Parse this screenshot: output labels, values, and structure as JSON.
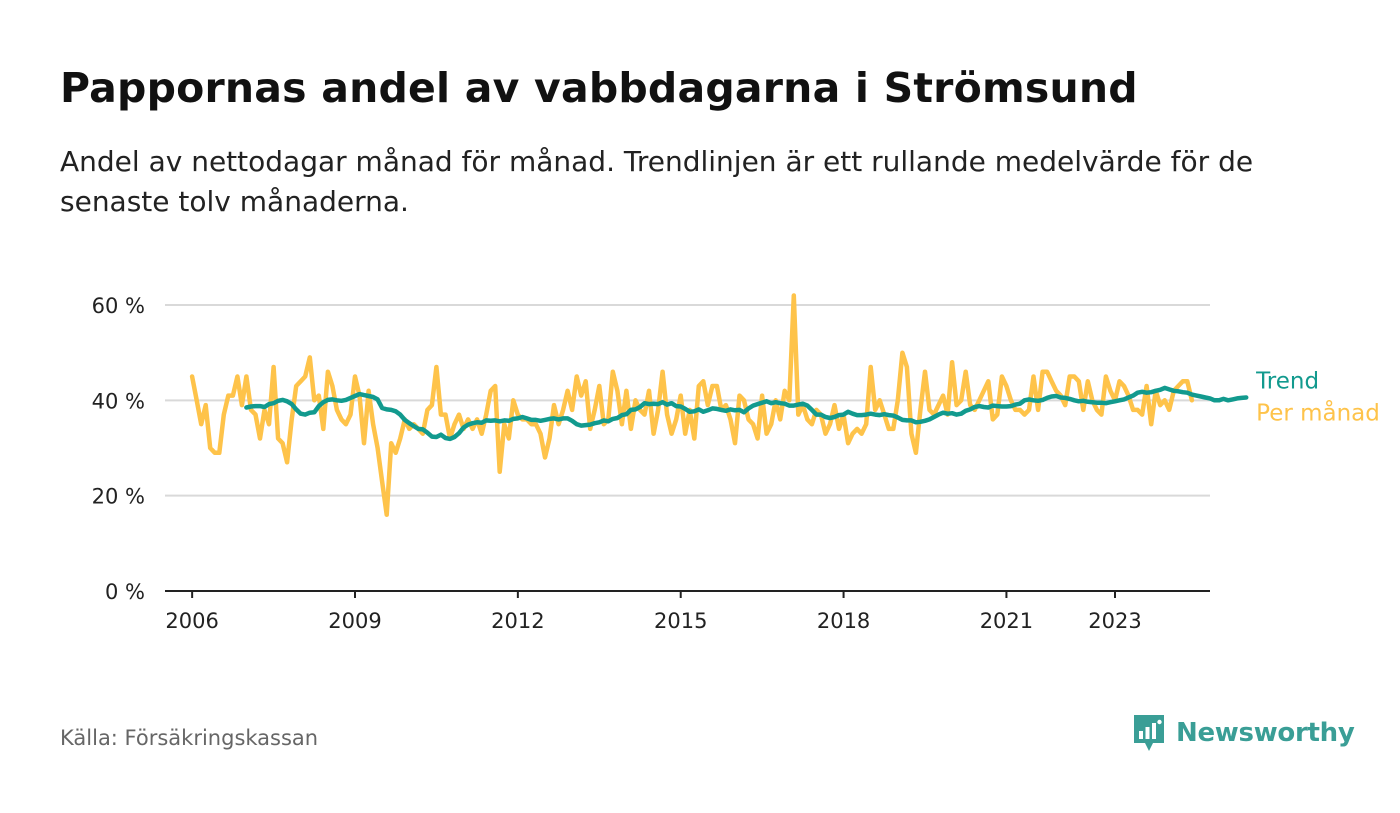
{
  "header": {
    "title": "Pappornas andel av vabbdagarna i Strömsund",
    "subtitle": "Andel av nettodagar månad för månad. Trendlinjen är ett rullande medelvärde för de senaste tolv månaderna."
  },
  "footer": {
    "source": "Källa: Försäkringskassan",
    "brand": "Newsworthy",
    "brand_icon": "newsworthy-logo-icon"
  },
  "colors": {
    "monthly": "#fec34a",
    "trend": "#129a8e",
    "grid": "#d9d9d9",
    "axis": "#222222",
    "brand": "#3a9e96"
  },
  "chart_data": {
    "type": "line",
    "title": "Pappornas andel av vabbdagarna i Strömsund",
    "xlabel": "",
    "ylabel": "",
    "x_range": [
      2005.5,
      2024.75
    ],
    "ylim": [
      0,
      60
    ],
    "y_ticks": [
      0,
      20,
      40,
      60
    ],
    "y_tick_labels": [
      "0 %",
      "20 %",
      "40 %",
      "60 %"
    ],
    "x_ticks": [
      2006,
      2009,
      2012,
      2015,
      2018,
      2021,
      2023
    ],
    "x_tick_labels": [
      "2006",
      "2009",
      "2012",
      "2015",
      "2018",
      "2021",
      "2023"
    ],
    "grid": true,
    "series": [
      {
        "name": "Per månad",
        "start": 2006.0,
        "step": 0.08333,
        "values": [
          45,
          40,
          35,
          39,
          30,
          29,
          29,
          37,
          41,
          41,
          45,
          39,
          45,
          38,
          37,
          32,
          38,
          35,
          47,
          32,
          31,
          27,
          36,
          43,
          44,
          45,
          49,
          40,
          41,
          34,
          46,
          43,
          38,
          36,
          35,
          37,
          45,
          41,
          31,
          42,
          35,
          30,
          23,
          16,
          31,
          29,
          32,
          36,
          34,
          35,
          34,
          33,
          38,
          39,
          47,
          37,
          37,
          32,
          35,
          37,
          34,
          36,
          34,
          36,
          33,
          37,
          42,
          43,
          25,
          35,
          32,
          40,
          37,
          36,
          36,
          35,
          35,
          33,
          28,
          32,
          39,
          35,
          38,
          42,
          38,
          45,
          41,
          44,
          34,
          38,
          43,
          35,
          36,
          46,
          42,
          35,
          42,
          34,
          40,
          38,
          37,
          42,
          33,
          38,
          46,
          37,
          33,
          36,
          41,
          33,
          38,
          32,
          43,
          44,
          39,
          43,
          43,
          38,
          39,
          36,
          31,
          41,
          40,
          36,
          35,
          32,
          41,
          33,
          35,
          40,
          36,
          42,
          40,
          62,
          37,
          39,
          36,
          35,
          38,
          37,
          33,
          35,
          39,
          34,
          37,
          31,
          33,
          34,
          33,
          35,
          47,
          38,
          40,
          37,
          34,
          34,
          40,
          50,
          47,
          33,
          29,
          38,
          46,
          38,
          37,
          39,
          41,
          37,
          48,
          39,
          40,
          46,
          39,
          38,
          40,
          42,
          44,
          36,
          37,
          45,
          43,
          40,
          38,
          38,
          37,
          38,
          45,
          38,
          46,
          46,
          44,
          42,
          41,
          39,
          45,
          45,
          44,
          38,
          44,
          40,
          38,
          37,
          45,
          42,
          40,
          44,
          43,
          41,
          38,
          38,
          37,
          43,
          35,
          42,
          39,
          40,
          38,
          42,
          43,
          44,
          44,
          40
        ]
      },
      {
        "name": "Trend",
        "start": 2007.0,
        "step": 0.08333,
        "values": [
          38.5,
          38.7,
          38.8,
          38.8,
          38.6,
          39.2,
          39.4,
          39.9,
          40.1,
          39.8,
          39.2,
          38.1,
          37.2,
          37.0,
          37.4,
          37.5,
          38.8,
          39.6,
          40.1,
          40.2,
          40.0,
          39.9,
          40.1,
          40.5,
          40.9,
          41.3,
          41.1,
          40.9,
          40.7,
          40.2,
          38.4,
          38.1,
          38.0,
          37.7,
          37.0,
          35.9,
          35.2,
          34.6,
          34.0,
          33.9,
          33.2,
          32.4,
          32.3,
          32.8,
          32.1,
          31.9,
          32.3,
          33.1,
          34.3,
          34.9,
          35.2,
          35.4,
          35.3,
          35.8,
          35.7,
          35.8,
          35.6,
          35.8,
          35.7,
          36.1,
          36.2,
          36.5,
          36.2,
          35.9,
          35.9,
          35.7,
          35.9,
          36.1,
          36.2,
          36.0,
          36.2,
          36.2,
          35.7,
          35.0,
          34.7,
          34.8,
          34.9,
          35.2,
          35.4,
          35.8,
          35.6,
          36.1,
          36.3,
          36.9,
          37.1,
          38.0,
          38.1,
          38.6,
          39.4,
          39.2,
          39.3,
          39.2,
          39.6,
          39.1,
          39.4,
          38.8,
          38.7,
          38.2,
          37.6,
          37.7,
          38.1,
          37.6,
          37.9,
          38.3,
          38.2,
          38.0,
          37.8,
          38.1,
          37.9,
          38.0,
          37.5,
          38.3,
          38.9,
          39.2,
          39.5,
          39.8,
          39.4,
          39.6,
          39.4,
          39.3,
          38.9,
          38.9,
          39.1,
          39.3,
          38.9,
          38.0,
          37.0,
          37.0,
          36.5,
          36.3,
          36.5,
          36.9,
          37.0,
          37.6,
          37.2,
          36.9,
          36.9,
          37.0,
          37.2,
          37.0,
          36.9,
          37.1,
          36.9,
          36.8,
          36.4,
          35.9,
          35.8,
          35.8,
          35.4,
          35.5,
          35.7,
          36.0,
          36.5,
          37.0,
          37.4,
          37.2,
          37.3,
          37.0,
          37.2,
          37.8,
          38.1,
          38.6,
          38.8,
          38.6,
          38.5,
          38.9,
          38.8,
          38.7,
          38.7,
          38.8,
          39.1,
          39.3,
          40.0,
          40.2,
          40.0,
          39.9,
          40.1,
          40.5,
          40.8,
          40.9,
          40.6,
          40.5,
          40.3,
          40.0,
          39.8,
          39.9,
          39.7,
          39.6,
          39.5,
          39.5,
          39.4,
          39.6,
          39.8,
          40.0,
          40.2,
          40.6,
          41.0,
          41.6,
          41.8,
          41.6,
          41.7,
          42.0,
          42.2,
          42.6,
          42.3,
          42.0,
          41.9,
          41.7,
          41.6,
          41.2,
          41.0,
          40.8,
          40.6,
          40.4,
          40.0,
          40.0,
          40.3,
          40.0,
          40.2,
          40.4,
          40.5,
          40.6
        ]
      }
    ],
    "legend": [
      {
        "label": "Trend",
        "series": "Trend"
      },
      {
        "label": "Per månad",
        "series": "Per månad"
      }
    ]
  }
}
